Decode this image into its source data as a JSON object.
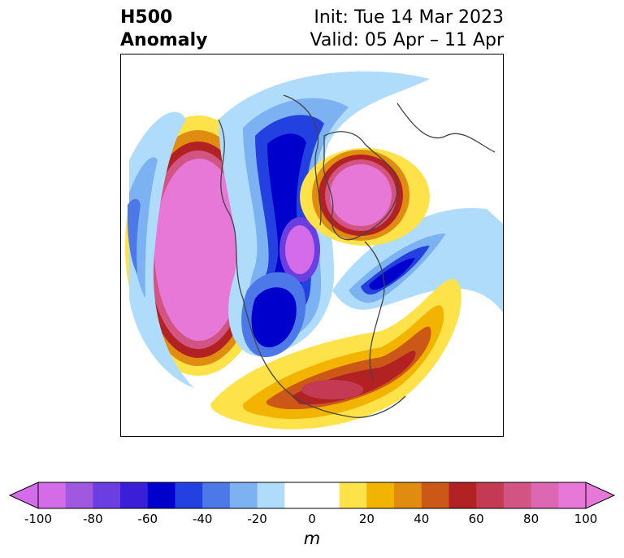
{
  "title": {
    "left_line1": "H500",
    "left_line2": "Anomaly",
    "right_line1": "Init: Tue 14 Mar 2023",
    "right_line2": "Valid: 05 Apr – 11 Apr"
  },
  "colorbar": {
    "units": "m",
    "min": -100,
    "max": 100,
    "tick_labels": [
      "-100",
      "-80",
      "-60",
      "-40",
      "-20",
      "0",
      "20",
      "40",
      "60",
      "80",
      "100"
    ],
    "levels": [
      -100,
      -90,
      -80,
      -70,
      -60,
      -50,
      -40,
      -30,
      -20,
      -10,
      10,
      20,
      30,
      40,
      50,
      60,
      70,
      80,
      90,
      100
    ],
    "colors": [
      "#d46be8",
      "#a058e0",
      "#6a3ee0",
      "#3a1ed8",
      "#0000cc",
      "#2340e0",
      "#4d79e8",
      "#7cb2f2",
      "#aedcfa",
      "#ffffff",
      "#fde24a",
      "#f2b400",
      "#e08c10",
      "#cc5818",
      "#b22222",
      "#c43a52",
      "#d25482",
      "#dc68b4",
      "#e878d8"
    ],
    "extend": "both"
  },
  "map": {
    "projection": "polar stereographic",
    "variable": "500 hPa geopotential height anomaly",
    "features": [
      {
        "name": "pacific-positive-anomaly",
        "sign": "positive",
        "peak_value": 100
      },
      {
        "name": "greenland-positive-anomaly",
        "sign": "positive",
        "peak_value": 100
      },
      {
        "name": "us-southeast-positive-anomaly",
        "sign": "positive",
        "peak_value": 70
      },
      {
        "name": "hudson-bay-negative-anomaly",
        "sign": "negative",
        "peak_value": -100
      },
      {
        "name": "arctic-negative-anomaly",
        "sign": "negative",
        "peak_value": -60
      },
      {
        "name": "atlantic-negative-anomaly",
        "sign": "negative",
        "peak_value": -60
      },
      {
        "name": "central-us-negative-anomaly",
        "sign": "negative",
        "peak_value": -60
      }
    ]
  }
}
